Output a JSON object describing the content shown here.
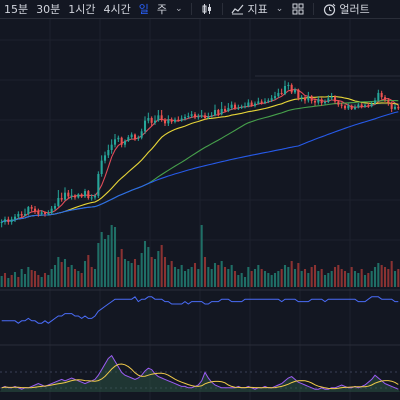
{
  "toolbar": {
    "intervals": [
      "15분",
      "30분",
      "1시간",
      "4시간",
      "일",
      "주"
    ],
    "active_interval": "일",
    "indicators_label": "지표",
    "alert_label": "얼러트"
  },
  "icons": {
    "candles": "candle-style-icon",
    "indicators": "indicators-icon",
    "layout": "layout-grid-icon",
    "alert": "alert-clock-icon"
  },
  "colors": {
    "background": "#131722",
    "up": "#26a69a",
    "down": "#ef5350",
    "ma_short": "#f7525f",
    "ma_mid": "#ffeb3b",
    "ma_long": "#4caf50",
    "ma_xlong": "#2962ff",
    "accent": "#2962ff"
  },
  "chart_data": {
    "type": "candlestick",
    "grid": true,
    "candles": [
      [
        3,
        3,
        2,
        3.5
      ],
      [
        3,
        3.5,
        2.5,
        4
      ],
      [
        3.5,
        3,
        2.5,
        4
      ],
      [
        3,
        3.5,
        2.5,
        4
      ],
      [
        3.5,
        4,
        3,
        4.5
      ],
      [
        4,
        4.5,
        3.5,
        5
      ],
      [
        4.5,
        4.2,
        3.8,
        5
      ],
      [
        4.2,
        4.5,
        4,
        5.5
      ],
      [
        4.5,
        5.8,
        4.2,
        6
      ],
      [
        5.8,
        5.5,
        5,
        6.2
      ],
      [
        5.5,
        5,
        4.5,
        6
      ],
      [
        5,
        4.5,
        4,
        5.5
      ],
      [
        4.5,
        4.8,
        4.2,
        5.2
      ],
      [
        4.8,
        4.5,
        4,
        5
      ],
      [
        4.5,
        4.7,
        4.2,
        5.2
      ],
      [
        4.7,
        5.5,
        4.5,
        6
      ],
      [
        5.5,
        6,
        5.2,
        6.5
      ],
      [
        6,
        7.5,
        5.8,
        9
      ],
      [
        7.5,
        7.2,
        6.8,
        8.5
      ],
      [
        7.2,
        8.5,
        7,
        9.5
      ],
      [
        8.5,
        7.8,
        7.5,
        9
      ],
      [
        7.8,
        8,
        7.2,
        9.2
      ],
      [
        8,
        7.6,
        7.2,
        8.2
      ],
      [
        7.6,
        8.2,
        7.4,
        8.4
      ],
      [
        8.2,
        7.8,
        7.5,
        8.4
      ],
      [
        7.8,
        8.8,
        7.5,
        9.2
      ],
      [
        8.8,
        7.5,
        7.2,
        9
      ],
      [
        7.5,
        7.6,
        7,
        8.2
      ],
      [
        7.6,
        7.9,
        7.2,
        8.3
      ],
      [
        7.9,
        12,
        7.5,
        12.5
      ],
      [
        12,
        14.5,
        11.5,
        15.5
      ],
      [
        14.5,
        15.5,
        14,
        16.2
      ],
      [
        15.5,
        16.5,
        15,
        17.5
      ],
      [
        16.5,
        17.5,
        15.8,
        18.5
      ],
      [
        17.5,
        18.5,
        17,
        19.5
      ],
      [
        18.5,
        18.8,
        18,
        19.2
      ],
      [
        18.8,
        17.5,
        17,
        19
      ],
      [
        17.5,
        18.2,
        17,
        18.5
      ],
      [
        18.2,
        18.9,
        18,
        19.3
      ],
      [
        18.9,
        19.4,
        18.5,
        19.8
      ],
      [
        19.4,
        18.6,
        18.2,
        19.6
      ],
      [
        18.6,
        18.8,
        18.2,
        19.2
      ],
      [
        18.8,
        20,
        18.5,
        20.5
      ],
      [
        20,
        22,
        19.5,
        22.8
      ],
      [
        22,
        22.5,
        21.5,
        23.5
      ],
      [
        22.5,
        21.6,
        21,
        22.8
      ],
      [
        21.6,
        22,
        21.2,
        23
      ],
      [
        22,
        23,
        21.8,
        24
      ],
      [
        23,
        22.2,
        21.8,
        24
      ],
      [
        22.2,
        21.5,
        21,
        22.5
      ],
      [
        21.5,
        22.2,
        21,
        23
      ],
      [
        22.2,
        21.8,
        21.4,
        22.6
      ],
      [
        21.8,
        22.2,
        21.5,
        22.6
      ],
      [
        22.2,
        22,
        21.8,
        22.8
      ],
      [
        22,
        22.4,
        21.8,
        23
      ],
      [
        22.4,
        22.7,
        22,
        23.2
      ],
      [
        22.7,
        22.9,
        22.4,
        23.5
      ],
      [
        22.9,
        23.2,
        22.5,
        23.8
      ],
      [
        23.2,
        22.6,
        22.3,
        23.6
      ],
      [
        22.6,
        22.8,
        22.2,
        23.3
      ],
      [
        22.8,
        23,
        22.5,
        24
      ],
      [
        23,
        22.5,
        22.2,
        23.5
      ],
      [
        22.5,
        22.8,
        22.3,
        23.5
      ],
      [
        22.8,
        23,
        22.6,
        23.6
      ],
      [
        23,
        24,
        22.8,
        25
      ],
      [
        24,
        23.2,
        22.8,
        24.2
      ],
      [
        23.2,
        24.2,
        23,
        25.5
      ],
      [
        24.2,
        23.8,
        23.5,
        24.8
      ],
      [
        23.8,
        24.4,
        23.6,
        25.3
      ],
      [
        24.4,
        25,
        24,
        25.6
      ],
      [
        25,
        24.3,
        24,
        25.4
      ],
      [
        24.3,
        24.4,
        24,
        25
      ],
      [
        24.4,
        24.6,
        24.2,
        25
      ],
      [
        24.6,
        24.7,
        24.3,
        25.4
      ],
      [
        24.7,
        25.4,
        24.5,
        26
      ],
      [
        25.4,
        24.8,
        24.6,
        25.8
      ],
      [
        24.8,
        25.2,
        24.5,
        25.6
      ],
      [
        25.2,
        25.6,
        25,
        26.3
      ],
      [
        25.6,
        25.3,
        25,
        26
      ],
      [
        25.3,
        25.6,
        25.1,
        26.2
      ],
      [
        25.6,
        25.8,
        25.3,
        26.2
      ],
      [
        25.8,
        26.2,
        25.5,
        26.8
      ],
      [
        26.2,
        26.6,
        25.9,
        27.4
      ],
      [
        26.6,
        27.2,
        26.3,
        28
      ],
      [
        27.2,
        27,
        26.8,
        28
      ],
      [
        27,
        28.5,
        26.8,
        29.5
      ],
      [
        28.5,
        28.7,
        27.8,
        29.2
      ],
      [
        28.7,
        27.3,
        27,
        29
      ],
      [
        27.3,
        27.8,
        27,
        28.2
      ],
      [
        27.8,
        26.2,
        25.8,
        28
      ],
      [
        26.2,
        26.4,
        25.6,
        26.8
      ],
      [
        26.4,
        25.8,
        25.2,
        26.6
      ],
      [
        25.8,
        26.6,
        25.4,
        27.4
      ],
      [
        26.6,
        25.7,
        25.2,
        26.8
      ],
      [
        25.7,
        25.4,
        24.8,
        26.2
      ],
      [
        25.4,
        26,
        25,
        26.6
      ],
      [
        26,
        25.3,
        24.8,
        26.3
      ],
      [
        25.3,
        25.5,
        25,
        26
      ],
      [
        25.5,
        26.2,
        25.3,
        26.8
      ],
      [
        26.2,
        26.5,
        25.8,
        27.2
      ],
      [
        26.5,
        25.6,
        25.2,
        26.8
      ],
      [
        25.6,
        25,
        24.6,
        25.8
      ],
      [
        25,
        24.8,
        24.3,
        25.4
      ],
      [
        24.8,
        24.3,
        24,
        25
      ],
      [
        24.3,
        24.8,
        24,
        25.2
      ],
      [
        24.8,
        24.2,
        24,
        25
      ],
      [
        24.2,
        24.5,
        24,
        25
      ],
      [
        24.5,
        25,
        24.3,
        25.3
      ],
      [
        25,
        24.6,
        24.3,
        25.3
      ],
      [
        24.6,
        24.9,
        24.4,
        25.2
      ],
      [
        24.9,
        24.7,
        24.4,
        25.4
      ],
      [
        24.7,
        25.2,
        24.5,
        25.6
      ],
      [
        25.2,
        25.8,
        25,
        26.3
      ],
      [
        25.8,
        27.2,
        25.6,
        27.8
      ],
      [
        27.2,
        26.4,
        26,
        27.6
      ],
      [
        26.4,
        25.9,
        25.5,
        26.8
      ],
      [
        25.9,
        25.4,
        24.8,
        26.2
      ],
      [
        25.4,
        24.2,
        23.6,
        25.6
      ],
      [
        24.2,
        24.6,
        24,
        25.2
      ],
      [
        24.6,
        24.3,
        24,
        25
      ]
    ],
    "volume": [
      [
        11,
        "up"
      ],
      [
        14,
        "down"
      ],
      [
        9,
        "up"
      ],
      [
        12,
        "down"
      ],
      [
        15,
        "up"
      ],
      [
        10,
        "down"
      ],
      [
        18,
        "up"
      ],
      [
        13,
        "up"
      ],
      [
        20,
        "up"
      ],
      [
        17,
        "down"
      ],
      [
        16,
        "down"
      ],
      [
        12,
        "down"
      ],
      [
        10,
        "up"
      ],
      [
        14,
        "down"
      ],
      [
        12,
        "up"
      ],
      [
        18,
        "up"
      ],
      [
        22,
        "up"
      ],
      [
        30,
        "up"
      ],
      [
        25,
        "down"
      ],
      [
        28,
        "up"
      ],
      [
        20,
        "down"
      ],
      [
        22,
        "up"
      ],
      [
        18,
        "down"
      ],
      [
        16,
        "up"
      ],
      [
        14,
        "down"
      ],
      [
        26,
        "up"
      ],
      [
        32,
        "down"
      ],
      [
        20,
        "down"
      ],
      [
        18,
        "up"
      ],
      [
        44,
        "up"
      ],
      [
        55,
        "up"
      ],
      [
        48,
        "up"
      ],
      [
        52,
        "up"
      ],
      [
        62,
        "up"
      ],
      [
        60,
        "up"
      ],
      [
        30,
        "down"
      ],
      [
        38,
        "down"
      ],
      [
        28,
        "up"
      ],
      [
        26,
        "up"
      ],
      [
        24,
        "up"
      ],
      [
        28,
        "down"
      ],
      [
        22,
        "up"
      ],
      [
        34,
        "up"
      ],
      [
        46,
        "up"
      ],
      [
        40,
        "up"
      ],
      [
        30,
        "down"
      ],
      [
        28,
        "up"
      ],
      [
        36,
        "up"
      ],
      [
        42,
        "down"
      ],
      [
        30,
        "down"
      ],
      [
        22,
        "up"
      ],
      [
        26,
        "down"
      ],
      [
        20,
        "up"
      ],
      [
        18,
        "up"
      ],
      [
        22,
        "up"
      ],
      [
        16,
        "up"
      ],
      [
        18,
        "up"
      ],
      [
        20,
        "up"
      ],
      [
        24,
        "down"
      ],
      [
        18,
        "up"
      ],
      [
        62,
        "up"
      ],
      [
        30,
        "down"
      ],
      [
        20,
        "up"
      ],
      [
        18,
        "up"
      ],
      [
        24,
        "up"
      ],
      [
        22,
        "down"
      ],
      [
        26,
        "up"
      ],
      [
        20,
        "down"
      ],
      [
        18,
        "up"
      ],
      [
        22,
        "up"
      ],
      [
        16,
        "down"
      ],
      [
        12,
        "up"
      ],
      [
        14,
        "up"
      ],
      [
        10,
        "up"
      ],
      [
        20,
        "up"
      ],
      [
        16,
        "down"
      ],
      [
        18,
        "up"
      ],
      [
        22,
        "up"
      ],
      [
        18,
        "down"
      ],
      [
        16,
        "up"
      ],
      [
        14,
        "up"
      ],
      [
        12,
        "up"
      ],
      [
        14,
        "up"
      ],
      [
        16,
        "up"
      ],
      [
        18,
        "down"
      ],
      [
        22,
        "up"
      ],
      [
        20,
        "up"
      ],
      [
        26,
        "down"
      ],
      [
        18,
        "up"
      ],
      [
        24,
        "down"
      ],
      [
        16,
        "up"
      ],
      [
        18,
        "down"
      ],
      [
        14,
        "up"
      ],
      [
        20,
        "down"
      ],
      [
        22,
        "down"
      ],
      [
        16,
        "up"
      ],
      [
        18,
        "down"
      ],
      [
        12,
        "up"
      ],
      [
        14,
        "up"
      ],
      [
        16,
        "up"
      ],
      [
        20,
        "down"
      ],
      [
        22,
        "down"
      ],
      [
        18,
        "down"
      ],
      [
        16,
        "down"
      ],
      [
        14,
        "up"
      ],
      [
        20,
        "down"
      ],
      [
        16,
        "up"
      ],
      [
        14,
        "up"
      ],
      [
        18,
        "down"
      ],
      [
        12,
        "up"
      ],
      [
        14,
        "down"
      ],
      [
        16,
        "up"
      ],
      [
        20,
        "up"
      ],
      [
        24,
        "up"
      ],
      [
        22,
        "down"
      ],
      [
        20,
        "down"
      ],
      [
        18,
        "down"
      ],
      [
        26,
        "down"
      ],
      [
        16,
        "up"
      ],
      [
        18,
        "down"
      ]
    ],
    "oscillator_1": [
      8,
      8,
      8,
      8,
      8,
      7,
      8,
      8,
      9,
      8,
      8,
      7,
      7,
      8,
      7,
      8,
      9,
      10,
      10,
      11,
      11,
      11,
      10,
      10,
      9,
      10,
      9,
      9,
      10,
      12,
      13,
      14,
      15,
      16,
      17,
      17,
      17,
      17,
      17,
      17,
      18,
      16,
      17,
      17,
      18,
      18,
      17,
      17,
      17,
      16,
      16,
      15,
      15,
      15,
      15,
      16,
      15,
      16,
      16,
      16,
      16,
      15,
      15,
      16,
      16,
      16,
      17,
      17,
      17,
      16,
      16,
      16,
      16,
      17,
      17,
      17,
      17,
      17,
      17,
      17,
      17,
      17,
      17,
      17,
      16,
      17,
      17,
      17,
      17,
      16,
      16,
      16,
      16,
      17,
      17,
      17,
      17,
      16,
      17,
      17,
      17,
      17,
      17,
      17,
      17,
      17,
      17,
      16,
      16,
      16,
      17,
      18,
      18,
      18,
      17,
      17,
      17,
      17,
      16,
      16
    ],
    "oscillator_2": [
      3,
      4,
      3,
      3,
      4,
      3,
      2,
      3,
      3,
      4,
      5,
      6,
      5,
      4,
      5,
      6,
      7,
      8,
      9,
      8,
      9,
      10,
      9,
      8,
      7,
      6,
      7,
      8,
      9,
      12,
      16,
      20,
      24,
      26,
      22,
      18,
      14,
      12,
      11,
      10,
      9,
      10,
      12,
      15,
      17,
      16,
      13,
      11,
      10,
      9,
      8,
      7,
      6,
      5,
      4,
      4,
      3,
      3,
      4,
      5,
      8,
      14,
      10,
      7,
      5,
      4,
      3,
      3,
      3,
      3,
      3,
      4,
      3,
      3,
      4,
      3,
      2,
      3,
      3,
      4,
      3,
      3,
      4,
      5,
      6,
      8,
      10,
      11,
      9,
      7,
      6,
      5,
      4,
      3,
      2,
      2,
      3,
      2,
      2,
      3,
      3,
      4,
      5,
      4,
      3,
      3,
      4,
      3,
      4,
      5,
      7,
      9,
      12,
      10,
      8,
      6,
      5,
      4,
      3,
      2
    ]
  }
}
